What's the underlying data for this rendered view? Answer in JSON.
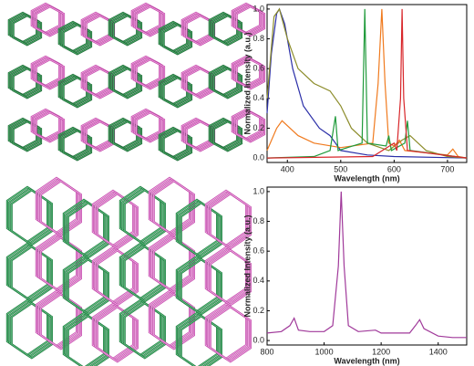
{
  "chart_data": [
    {
      "type": "line",
      "xlabel": "Wavelength (nm)",
      "ylabel": "Normalized Intensity (a.u.)",
      "xlim": [
        362,
        736
      ],
      "xticks": [
        400,
        500,
        600,
        700
      ],
      "ylim": [
        -0.03,
        1.03
      ],
      "yticks": [
        {
          "value": 0,
          "label": "0.0"
        },
        {
          "value": 0.2,
          "label": "0.2"
        },
        {
          "value": 0.4,
          "label": "0.4"
        },
        {
          "value": 0.6,
          "label": "0.6"
        },
        {
          "value": 0.8,
          "label": "0.8"
        },
        {
          "value": 1.0,
          "label": "1.0"
        }
      ],
      "series": [
        {
          "color": "#2b2fa8",
          "x": [
            362,
            370,
            380,
            385,
            395,
            410,
            430,
            460,
            480,
            490,
            500,
            550,
            600,
            736
          ],
          "values": [
            0.3,
            0.7,
            0.97,
            1.0,
            0.9,
            0.6,
            0.35,
            0.2,
            0.15,
            0.1,
            0.05,
            0.02,
            0.01,
            0.0
          ]
        },
        {
          "color": "#8c8c2a",
          "x": [
            362,
            375,
            385,
            400,
            420,
            450,
            480,
            500,
            520,
            550,
            590,
            615,
            630,
            645,
            660,
            700,
            736
          ],
          "values": [
            0.4,
            0.95,
            1.0,
            0.8,
            0.6,
            0.5,
            0.45,
            0.35,
            0.2,
            0.1,
            0.05,
            0.12,
            0.15,
            0.1,
            0.05,
            0.01,
            0.0
          ]
        },
        {
          "color": "#f07a1e",
          "x": [
            362,
            380,
            390,
            420,
            450,
            500,
            560,
            570,
            577,
            583,
            590,
            600,
            610,
            620,
            700,
            710,
            720,
            736
          ],
          "values": [
            0.05,
            0.2,
            0.25,
            0.15,
            0.1,
            0.07,
            0.1,
            0.5,
            1.0,
            0.5,
            0.1,
            0.08,
            0.12,
            0.05,
            0.02,
            0.06,
            0.01,
            0.0
          ]
        },
        {
          "color": "#1f9a3a",
          "x": [
            362,
            450,
            480,
            490,
            495,
            540,
            545,
            550,
            585,
            590,
            595,
            620,
            625,
            630,
            736
          ],
          "values": [
            0.0,
            0.01,
            0.05,
            0.28,
            0.05,
            0.1,
            1.0,
            0.1,
            0.08,
            0.15,
            0.05,
            0.1,
            0.25,
            0.05,
            0.0
          ]
        },
        {
          "color": "#d8262a",
          "x": [
            362,
            560,
            600,
            605,
            612,
            615,
            618,
            625,
            736
          ],
          "values": [
            0.0,
            0.01,
            0.1,
            0.05,
            0.4,
            1.0,
            0.4,
            0.05,
            0.0
          ]
        }
      ]
    },
    {
      "type": "line",
      "xlabel": "Wavelength (nm)",
      "ylabel": "Normalized Intensity (a.u.)",
      "xlim": [
        800,
        1500
      ],
      "xticks": [
        800,
        1000,
        1200,
        1400
      ],
      "ylim": [
        -0.03,
        1.03
      ],
      "yticks": [
        {
          "value": 0,
          "label": "0.0"
        },
        {
          "value": 0.2,
          "label": "0.2"
        },
        {
          "value": 0.4,
          "label": "0.4"
        },
        {
          "value": 0.6,
          "label": "0.6"
        },
        {
          "value": 0.8,
          "label": "0.8"
        },
        {
          "value": 1.0,
          "label": "1.0"
        }
      ],
      "series": [
        {
          "color": "#a0399a",
          "x": [
            800,
            850,
            880,
            895,
            910,
            950,
            1000,
            1030,
            1050,
            1060,
            1070,
            1085,
            1120,
            1180,
            1200,
            1300,
            1320,
            1335,
            1350,
            1400,
            1450,
            1500
          ],
          "values": [
            0.05,
            0.06,
            0.1,
            0.15,
            0.07,
            0.06,
            0.06,
            0.1,
            0.5,
            1.0,
            0.5,
            0.1,
            0.06,
            0.07,
            0.05,
            0.05,
            0.1,
            0.14,
            0.08,
            0.03,
            0.02,
            0.02
          ]
        }
      ]
    }
  ]
}
